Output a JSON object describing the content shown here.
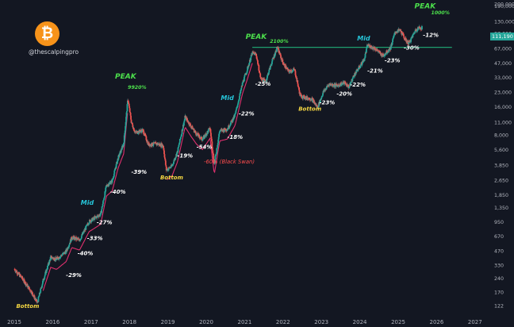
{
  "header": {
    "handle": "@thescalpingpro",
    "logo_symbol": "₿"
  },
  "current_price_label": "111,190",
  "colors": {
    "background": "#131722",
    "up": "#26a69a",
    "down": "#ef5350",
    "peak": "#4ce04c",
    "mid": "#26c6da",
    "bottom": "#f5d742",
    "swan": "#ff4d4d",
    "trendline": "#e0306e",
    "resistance": "#1e9e6e",
    "axis_text": "#b2b5be"
  },
  "chart_data": {
    "type": "candlestick",
    "title": "",
    "x": {
      "tick_labels": [
        "2015",
        "2016",
        "2017",
        "2018",
        "2019",
        "2020",
        "2021",
        "2022",
        "2023",
        "2024",
        "2025",
        "2026",
        "2027"
      ]
    },
    "y": {
      "scale": "log",
      "tick_labels": [
        "200,000",
        "190,000",
        "130,000",
        "97,000",
        "67,000",
        "47,000",
        "33,000",
        "23,000",
        "16,000",
        "11,000",
        "8,000",
        "5,600",
        "3,850",
        "2,650",
        "1,850",
        "1,350",
        "950",
        "670",
        "470",
        "330",
        "240",
        "170",
        "122"
      ],
      "tick_values": [
        200000,
        190000,
        130000,
        97000,
        67000,
        47000,
        33000,
        23000,
        16000,
        11000,
        8000,
        5600,
        3850,
        2650,
        1850,
        1350,
        950,
        670,
        470,
        330,
        240,
        170,
        122
      ]
    },
    "price_path": [
      [
        2015.0,
        300
      ],
      [
        2015.2,
        240
      ],
      [
        2015.45,
        170
      ],
      [
        2015.6,
        130
      ],
      [
        2015.75,
        225
      ],
      [
        2015.95,
        400
      ],
      [
        2016.1,
        380
      ],
      [
        2016.35,
        460
      ],
      [
        2016.5,
        650
      ],
      [
        2016.7,
        610
      ],
      [
        2016.95,
        960
      ],
      [
        2017.1,
        1050
      ],
      [
        2017.25,
        1150
      ],
      [
        2017.4,
        2300
      ],
      [
        2017.55,
        2600
      ],
      [
        2017.7,
        4500
      ],
      [
        2017.85,
        6500
      ],
      [
        2017.96,
        19500
      ],
      [
        2018.05,
        11000
      ],
      [
        2018.15,
        8500
      ],
      [
        2018.35,
        9000
      ],
      [
        2018.5,
        6300
      ],
      [
        2018.7,
        6500
      ],
      [
        2018.88,
        6200
      ],
      [
        2018.96,
        3400
      ],
      [
        2019.1,
        3700
      ],
      [
        2019.25,
        5300
      ],
      [
        2019.45,
        12500
      ],
      [
        2019.6,
        10000
      ],
      [
        2019.75,
        8200
      ],
      [
        2019.9,
        7200
      ],
      [
        2020.1,
        9500
      ],
      [
        2020.21,
        3900
      ],
      [
        2020.35,
        8900
      ],
      [
        2020.55,
        9300
      ],
      [
        2020.75,
        13000
      ],
      [
        2020.95,
        29000
      ],
      [
        2021.05,
        38000
      ],
      [
        2021.2,
        60000
      ],
      [
        2021.3,
        58000
      ],
      [
        2021.42,
        32000
      ],
      [
        2021.55,
        30000
      ],
      [
        2021.7,
        47000
      ],
      [
        2021.85,
        69000
      ],
      [
        2022.0,
        47000
      ],
      [
        2022.15,
        38000
      ],
      [
        2022.3,
        40000
      ],
      [
        2022.45,
        21000
      ],
      [
        2022.6,
        20000
      ],
      [
        2022.75,
        19500
      ],
      [
        2022.9,
        15800
      ],
      [
        2023.05,
        23000
      ],
      [
        2023.2,
        28000
      ],
      [
        2023.4,
        27000
      ],
      [
        2023.6,
        29000
      ],
      [
        2023.72,
        26000
      ],
      [
        2023.85,
        35000
      ],
      [
        2024.0,
        43000
      ],
      [
        2024.12,
        52000
      ],
      [
        2024.2,
        73000
      ],
      [
        2024.4,
        67000
      ],
      [
        2024.6,
        56000
      ],
      [
        2024.8,
        68000
      ],
      [
        2024.92,
        100000
      ],
      [
        2025.05,
        105000
      ],
      [
        2025.2,
        82000
      ],
      [
        2025.28,
        76000
      ],
      [
        2025.45,
        105000
      ],
      [
        2025.55,
        112000
      ],
      [
        2025.62,
        111190
      ]
    ],
    "resistance_level": 69000,
    "annotations": [
      {
        "text": "PEAK",
        "kind": "peak",
        "x": 2017.9,
        "y": 32000
      },
      {
        "text": "9920%",
        "kind": "peak_small",
        "x": 2018.2,
        "y": 25000
      },
      {
        "text": "PEAK",
        "kind": "peak",
        "x": 2021.3,
        "y": 85000
      },
      {
        "text": "2100%",
        "kind": "peak_small",
        "x": 2021.9,
        "y": 77000
      },
      {
        "text": "PEAK",
        "kind": "peak",
        "x": 2025.7,
        "y": 180000
      },
      {
        "text": "1000%",
        "kind": "peak_small",
        "x": 2026.1,
        "y": 155000
      },
      {
        "text": "Mid",
        "kind": "mid",
        "x": 2016.9,
        "y": 1450
      },
      {
        "text": "Mid",
        "kind": "mid",
        "x": 2020.55,
        "y": 19000
      },
      {
        "text": "Mid",
        "kind": "mid",
        "x": 2024.1,
        "y": 82000
      },
      {
        "text": "Bottom",
        "kind": "bottom",
        "x": 2015.35,
        "y": 115
      },
      {
        "text": "Bottom",
        "kind": "bottom",
        "x": 2019.1,
        "y": 2700
      },
      {
        "text": "Bottom",
        "kind": "bottom",
        "x": 2022.7,
        "y": 14500
      },
      {
        "text": "-29%",
        "kind": "pct",
        "x": 2016.55,
        "y": 245
      },
      {
        "text": "-40%",
        "kind": "pct",
        "x": 2016.85,
        "y": 420
      },
      {
        "text": "-33%",
        "kind": "pct",
        "x": 2017.1,
        "y": 610
      },
      {
        "text": "-27%",
        "kind": "pct",
        "x": 2017.35,
        "y": 900
      },
      {
        "text": "-40%",
        "kind": "pct",
        "x": 2017.7,
        "y": 1900
      },
      {
        "text": "-39%",
        "kind": "pct",
        "x": 2018.25,
        "y": 3100
      },
      {
        "text": "-19%",
        "kind": "pct",
        "x": 2019.45,
        "y": 4600
      },
      {
        "text": "-54%",
        "kind": "pct",
        "x": 2019.95,
        "y": 5700
      },
      {
        "text": "-60% (Black Swan)",
        "kind": "swan",
        "x": 2020.6,
        "y": 4000
      },
      {
        "text": "-18%",
        "kind": "pct",
        "x": 2020.75,
        "y": 7300
      },
      {
        "text": "-22%",
        "kind": "pct",
        "x": 2021.05,
        "y": 13000
      },
      {
        "text": "-25%",
        "kind": "pct",
        "x": 2021.48,
        "y": 27000
      },
      {
        "text": "-23%",
        "kind": "pct",
        "x": 2023.15,
        "y": 17000
      },
      {
        "text": "-20%",
        "kind": "pct",
        "x": 2023.6,
        "y": 21000
      },
      {
        "text": "-22%",
        "kind": "pct",
        "x": 2023.95,
        "y": 26500
      },
      {
        "text": "-21%",
        "kind": "pct",
        "x": 2024.4,
        "y": 37000
      },
      {
        "text": "-23%",
        "kind": "pct",
        "x": 2024.85,
        "y": 48000
      },
      {
        "text": "-30%",
        "kind": "pct",
        "x": 2025.35,
        "y": 65000
      },
      {
        "text": "-12%",
        "kind": "pct",
        "x": 2025.85,
        "y": 89000
      }
    ]
  }
}
